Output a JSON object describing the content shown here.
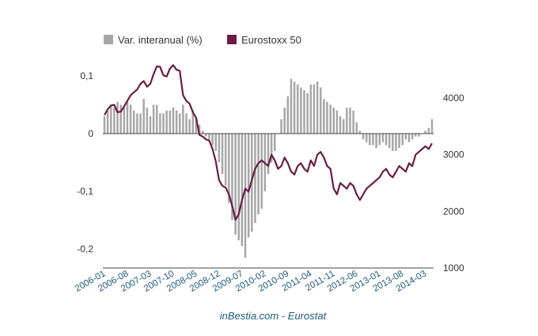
{
  "chart_data": {
    "type": "bar+line",
    "title": "",
    "source": "inBestia.com - Eurostat",
    "legend": {
      "position": "top-left",
      "entries": [
        {
          "name": "Var. interanual (%)",
          "color": "#a6a6a6",
          "kind": "bar"
        },
        {
          "name": "Eurostoxx 50",
          "color": "#6b1c43",
          "kind": "line"
        }
      ]
    },
    "x_tick_labels": [
      "2006-01",
      "2006-08",
      "2007-03",
      "2007-10",
      "2008-05",
      "2008-12",
      "2009-07",
      "2010-02",
      "2010-09",
      "2011-04",
      "2011-11",
      "2012-06",
      "2013-01",
      "2013-08",
      "2014-03"
    ],
    "x_start": "2006-01",
    "n_months": 101,
    "y_left": {
      "ticks": [
        0.1,
        0,
        -0.1,
        -0.2
      ],
      "tick_labels": [
        "0,1",
        "0",
        "-0,1",
        "-0,2"
      ],
      "range": [
        -0.22,
        0.12
      ]
    },
    "y_right": {
      "ticks": [
        4000,
        3000,
        2000,
        1000
      ],
      "tick_labels": [
        "4000",
        "3000",
        "2000",
        "1000"
      ],
      "range": [
        1000,
        4500
      ]
    },
    "series": [
      {
        "name": "Var. interanual (%)",
        "axis": "left",
        "type": "bar",
        "values": [
          0.03,
          0.04,
          0.05,
          0.045,
          0.055,
          0.05,
          0.045,
          0.055,
          0.05,
          0.04,
          0.035,
          0.035,
          0.06,
          0.045,
          0.03,
          0.05,
          0.05,
          0.035,
          0.035,
          0.04,
          0.04,
          0.045,
          0.04,
          0.035,
          0.05,
          0.035,
          0.025,
          0.04,
          0.025,
          0.015,
          0.005,
          -0.005,
          -0.01,
          -0.02,
          -0.03,
          -0.05,
          -0.07,
          -0.09,
          -0.12,
          -0.15,
          -0.175,
          -0.185,
          -0.195,
          -0.215,
          -0.18,
          -0.17,
          -0.155,
          -0.14,
          -0.13,
          -0.1,
          -0.07,
          -0.05,
          -0.03,
          0,
          0.025,
          0.045,
          0.065,
          0.095,
          0.09,
          0.085,
          0.08,
          0.075,
          0.07,
          0.085,
          0.085,
          0.09,
          0.08,
          0.06,
          0.055,
          0.05,
          0.045,
          0.04,
          0.03,
          0.025,
          0.045,
          0.045,
          0.04,
          0.02,
          0.005,
          -0.01,
          -0.015,
          -0.02,
          -0.02,
          -0.025,
          -0.02,
          -0.015,
          -0.02,
          -0.025,
          -0.03,
          -0.03,
          -0.025,
          -0.02,
          -0.01,
          -0.015,
          -0.01,
          -0.005,
          -0.005,
          0,
          0.005,
          0.01,
          0.025
        ]
      },
      {
        "name": "Eurostoxx 50",
        "axis": "right",
        "type": "line",
        "values": [
          3700,
          3800,
          3870,
          3880,
          3750,
          3760,
          3850,
          3950,
          4050,
          4100,
          4150,
          4250,
          4300,
          4200,
          4250,
          4420,
          4560,
          4550,
          4400,
          4380,
          4520,
          4580,
          4500,
          4480,
          4050,
          3950,
          3900,
          3750,
          3650,
          3350,
          3320,
          3270,
          3250,
          3100,
          2880,
          2550,
          2450,
          2420,
          2300,
          2100,
          1850,
          1950,
          2200,
          2400,
          2350,
          2550,
          2750,
          2850,
          2900,
          2850,
          2800,
          3000,
          2900,
          2750,
          2800,
          2950,
          2850,
          2700,
          2650,
          2800,
          2850,
          2750,
          2700,
          2900,
          2800,
          3000,
          3050,
          2950,
          2800,
          2750,
          2400,
          2300,
          2500,
          2450,
          2400,
          2500,
          2450,
          2300,
          2200,
          2300,
          2400,
          2450,
          2500,
          2550,
          2600,
          2700,
          2750,
          2650,
          2600,
          2700,
          2800,
          2750,
          2700,
          2850,
          2800,
          3000,
          3050,
          3100,
          3150,
          3100,
          3200
        ]
      }
    ]
  }
}
